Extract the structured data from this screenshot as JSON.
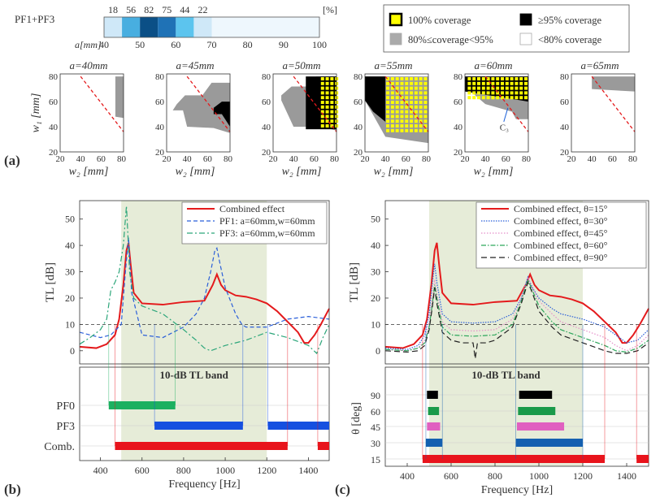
{
  "labels": {
    "a": "(a)",
    "b": "(b)",
    "c": "(c)"
  },
  "strip": {
    "title": "PF1+PF3",
    "unit": "[%]",
    "axis_label": "a[mm]",
    "a_values": [
      40,
      50,
      60,
      70,
      80,
      90,
      100
    ],
    "percents": [
      18,
      56,
      82,
      75,
      44,
      22
    ],
    "cell_colors": [
      "#cfe8f8",
      "#48aee0",
      "#0b4f86",
      "#1f72b6",
      "#5cc4ee",
      "#cfe8f8"
    ],
    "rest_color": "#eef7fd"
  },
  "coverage_legend": [
    {
      "label": "100% coverage",
      "fill": "#ffff00",
      "edge": "#000000",
      "style": "yellow"
    },
    {
      "label": "≥95% coverage",
      "fill": "#000000",
      "edge": "#000000",
      "style": "black"
    },
    {
      "label": "80%≤coverage<95%",
      "fill": "#aaaaaa",
      "edge": "#aaaaaa",
      "style": "gray"
    },
    {
      "label": "<80% coverage",
      "fill": "#ffffff",
      "edge": "#aaaaaa",
      "style": "white"
    }
  ],
  "maps": {
    "ylabel": "w₁ [mm]",
    "xlabel": "w₂ [mm]",
    "ticks": [
      20,
      40,
      60,
      80
    ],
    "annotation": "C₃",
    "panels": [
      {
        "title": "a=40mm",
        "ylabel": true,
        "xlabel": true,
        "gray": [
          [
            74,
            35
          ],
          [
            74,
            48
          ],
          [
            82,
            47
          ],
          [
            82,
            88
          ],
          [
            82,
            80
          ],
          [
            74,
            80
          ]
        ],
        "black": [],
        "yellow": null
      },
      {
        "title": "a=45mm",
        "xlabel": true,
        "gray": [
          [
            26,
            53
          ],
          [
            36,
            53
          ],
          [
            40,
            40
          ],
          [
            66,
            39
          ],
          [
            82,
            35
          ],
          [
            82,
            90
          ],
          [
            82,
            75
          ],
          [
            64,
            75
          ],
          [
            55,
            65
          ],
          [
            38,
            65
          ],
          [
            30,
            58
          ]
        ],
        "black": [
          [
            66,
            50
          ],
          [
            74,
            50
          ],
          [
            82,
            40
          ],
          [
            82,
            60
          ],
          [
            74,
            60
          ],
          [
            66,
            55
          ]
        ],
        "yellow": null
      },
      {
        "title": "a=50mm",
        "xlabel": true,
        "gray": [
          [
            28,
            61
          ],
          [
            40,
            40
          ],
          [
            66,
            40
          ],
          [
            82,
            37
          ],
          [
            82,
            80
          ],
          [
            62,
            80
          ],
          [
            52,
            72
          ],
          [
            38,
            72
          ],
          [
            28,
            65
          ]
        ],
        "black": [
          [
            52,
            38
          ],
          [
            82,
            38
          ],
          [
            82,
            80
          ],
          [
            52,
            80
          ]
        ],
        "yellow": [
          66,
          82,
          40,
          80
        ]
      },
      {
        "title": "a=55mm",
        "xlabel": true,
        "gray": [
          [
            20,
            61
          ],
          [
            40,
            32
          ],
          [
            82,
            27
          ],
          [
            82,
            80
          ],
          [
            20,
            80
          ]
        ],
        "black": [
          [
            20,
            61
          ],
          [
            28,
            52
          ],
          [
            40,
            44
          ],
          [
            40,
            80
          ],
          [
            20,
            80
          ]
        ],
        "yellow": [
          40,
          82,
          38,
          80
        ]
      },
      {
        "title": "a=60mm",
        "xlabel": true,
        "gray": [
          [
            20,
            72
          ],
          [
            40,
            58
          ],
          [
            66,
            52
          ],
          [
            70,
            46
          ],
          [
            82,
            46
          ],
          [
            82,
            80
          ],
          [
            20,
            80
          ]
        ],
        "black": [
          [
            20,
            68
          ],
          [
            82,
            60
          ],
          [
            82,
            80
          ],
          [
            20,
            80
          ]
        ],
        "yellow": [
          22,
          82,
          62,
          80
        ],
        "annotate": true
      },
      {
        "title": "a=65mm",
        "xlabel": false,
        "gray": [
          [
            40,
            70
          ],
          [
            82,
            68
          ],
          [
            82,
            80
          ],
          [
            40,
            80
          ]
        ],
        "black": [],
        "yellow": null
      }
    ]
  },
  "panel_b": {
    "ylabel": "TL [dB]",
    "xlabel": "Frequency [Hz]",
    "band_title": "10-dB TL band",
    "yticks": [
      0,
      10,
      20,
      30,
      40,
      50
    ],
    "xticks": [
      400,
      600,
      800,
      1000,
      1200,
      1400
    ],
    "shade_range": [
      500,
      1200
    ],
    "threshold": 10,
    "legend": [
      {
        "label": "Combined effect",
        "color": "#e41a1c",
        "dash": ""
      },
      {
        "label": "PF1: a=60mm,w=60mm",
        "color": "#2b5fd9",
        "dash": "5,3"
      },
      {
        "label": "PF3: a=60mm,w=60mm",
        "color": "#2ca67a",
        "dash": "7,3,2,3"
      }
    ],
    "bar_rows": [
      "PF0",
      "PF3",
      "Comb."
    ]
  },
  "panel_c": {
    "ylabel": "TL [dB]",
    "xlabel": "Frequency [Hz]",
    "band_title": "10-dB TL band",
    "band_ylabel": "θ [deg]",
    "yticks": [
      0,
      10,
      20,
      30,
      40,
      50
    ],
    "xticks": [
      400,
      600,
      800,
      1000,
      1200,
      1400
    ],
    "theta_ticks": [
      15,
      30,
      45,
      60,
      90
    ],
    "shade_range": [
      500,
      1200
    ],
    "threshold": 10,
    "legend": [
      {
        "label": "Combined effect, θ=15°",
        "color": "#e41a1c",
        "dash": ""
      },
      {
        "label": "Combined effect, θ=30°",
        "color": "#2b5fd9",
        "dash": "1.5,1.5"
      },
      {
        "label": "Combined effect, θ=45°",
        "color": "#e58fc9",
        "dash": "1.5,2"
      },
      {
        "label": "Combined effect, θ=60°",
        "color": "#2ca65a",
        "dash": "6,2,1.5,2"
      },
      {
        "label": "Combined effect, θ=90°",
        "color": "#222222",
        "dash": "7,4"
      }
    ]
  },
  "chart_data": [
    {
      "type": "heatmap",
      "title": "PF1+PF3",
      "xlabel": "a[mm]",
      "categories": [
        "40",
        "45",
        "50",
        "55",
        "60",
        "65"
      ],
      "values": [
        18,
        56,
        82,
        75,
        44,
        22
      ],
      "unit": "[%]",
      "xlim": [
        40,
        100
      ]
    },
    {
      "type": "line",
      "xlabel": "Frequency [Hz]",
      "ylabel": "TL [dB]",
      "xlim": [
        300,
        1500
      ],
      "ylim": [
        -5,
        57
      ],
      "series": [
        {
          "name": "Combined effect",
          "x": [
            300,
            380,
            430,
            470,
            490,
            510,
            525,
            535,
            545,
            560,
            600,
            700,
            800,
            900,
            940,
            960,
            980,
            1000,
            1050,
            1100,
            1150,
            1200,
            1250,
            1300,
            1350,
            1380,
            1400,
            1430,
            1460,
            1500
          ],
          "y": [
            1.5,
            1,
            2.5,
            6,
            12,
            25,
            38,
            41,
            33,
            22,
            18,
            17.5,
            18.5,
            19,
            25,
            29,
            25,
            23,
            21,
            20.5,
            19.5,
            18,
            15,
            11,
            7,
            3,
            3,
            6,
            10,
            16
          ]
        },
        {
          "name": "PF1: a=60mm,w=60mm",
          "x": [
            300,
            400,
            450,
            500,
            520,
            535,
            550,
            600,
            700,
            800,
            860,
            900,
            930,
            950,
            960,
            975,
            1000,
            1050,
            1080,
            1100,
            1200,
            1300,
            1400,
            1500
          ],
          "y": [
            7,
            5,
            6,
            10,
            30,
            43,
            22,
            6,
            5,
            9,
            14,
            20,
            30,
            38,
            39,
            33,
            24,
            14,
            10,
            9,
            9,
            12,
            13,
            12
          ]
        },
        {
          "name": "PF3: a=60mm,w=60mm",
          "x": [
            300,
            350,
            400,
            430,
            450,
            470,
            490,
            510,
            525,
            532,
            540,
            560,
            600,
            700,
            800,
            860,
            900,
            930,
            1000,
            1100,
            1200,
            1300,
            1400,
            1440,
            1470,
            1500
          ],
          "y": [
            2.5,
            5,
            8,
            12,
            23,
            26,
            30,
            40,
            55,
            44,
            30,
            20,
            17,
            14,
            8,
            4,
            1,
            0,
            2,
            4,
            7,
            5,
            2,
            -1,
            5,
            10
          ]
        }
      ],
      "bands": {
        "PF0": [
          [
            440,
            760
          ]
        ],
        "PF3": [
          [
            660,
            1085
          ],
          [
            1205,
            1510
          ]
        ],
        "Comb.": [
          [
            470,
            1300
          ],
          [
            1445,
            1510
          ]
        ]
      }
    },
    {
      "type": "line",
      "xlabel": "Frequency [Hz]",
      "ylabel": "TL [dB]",
      "xlim": [
        300,
        1500
      ],
      "ylim": [
        -5,
        57
      ],
      "series": [
        {
          "name": "Combined effect, θ=15°",
          "x": [
            300,
            380,
            430,
            470,
            490,
            510,
            525,
            535,
            545,
            560,
            600,
            700,
            800,
            900,
            940,
            960,
            980,
            1000,
            1050,
            1100,
            1150,
            1200,
            1250,
            1300,
            1350,
            1380,
            1400,
            1430,
            1460,
            1500
          ],
          "y": [
            1.5,
            1,
            2.5,
            6,
            12,
            25,
            38,
            41,
            33,
            22,
            18,
            17.5,
            18.5,
            19,
            25,
            29,
            25,
            23,
            21,
            20.5,
            19.5,
            18,
            15,
            11,
            7,
            3,
            3,
            6,
            10,
            16
          ]
        },
        {
          "name": "Combined effect, θ=30°",
          "x": [
            300,
            400,
            450,
            480,
            500,
            515,
            525,
            535,
            560,
            600,
            700,
            800,
            880,
            920,
            950,
            970,
            1000,
            1060,
            1100,
            1200,
            1300,
            1350,
            1400,
            1450,
            1500
          ],
          "y": [
            1,
            0.5,
            2,
            6,
            14,
            26,
            33,
            26,
            14,
            11,
            10.5,
            11,
            14,
            20,
            28,
            24,
            20,
            16,
            14,
            12,
            9,
            6,
            3,
            4,
            8
          ]
        },
        {
          "name": "Combined effect, θ=45°",
          "x": [
            300,
            400,
            450,
            480,
            500,
            515,
            525,
            535,
            560,
            600,
            700,
            800,
            880,
            920,
            950,
            970,
            1000,
            1060,
            1100,
            1200,
            1300,
            1350,
            1400,
            1450,
            1500
          ],
          "y": [
            0.5,
            0,
            1,
            4,
            11,
            20,
            27,
            22,
            11,
            8,
            7.5,
            8,
            12,
            20,
            28,
            24,
            19,
            14,
            11,
            8,
            5,
            2,
            0,
            2,
            6
          ]
        },
        {
          "name": "Combined effect, θ=60°",
          "x": [
            300,
            400,
            450,
            480,
            500,
            515,
            525,
            535,
            560,
            600,
            700,
            800,
            880,
            920,
            950,
            970,
            1000,
            1060,
            1100,
            1200,
            1300,
            1350,
            1400,
            1450,
            1500
          ],
          "y": [
            0.5,
            0,
            1,
            3,
            9,
            18,
            25,
            20,
            9,
            6,
            5.5,
            6,
            10,
            19,
            27,
            23,
            17,
            11,
            8,
            5,
            2,
            0,
            -0.5,
            1,
            4
          ]
        },
        {
          "name": "Combined effect, θ=90°",
          "x": [
            300,
            400,
            450,
            480,
            500,
            515,
            525,
            535,
            560,
            600,
            650,
            700,
            710,
            720,
            760,
            800,
            880,
            920,
            950,
            970,
            1000,
            1060,
            1100,
            1200,
            1300,
            1350,
            1400,
            1450,
            1500
          ],
          "y": [
            0,
            -0.5,
            0,
            2,
            8,
            17,
            24,
            18,
            7,
            4,
            3,
            3,
            -3,
            3,
            3,
            4,
            9,
            18,
            26,
            22,
            15,
            9,
            6,
            3,
            0,
            -1,
            -1,
            0,
            3
          ]
        }
      ],
      "bands": {
        "90": [
          [
            490,
            540
          ],
          [
            910,
            1060
          ]
        ],
        "60": [
          [
            495,
            545
          ],
          [
            905,
            1075
          ]
        ],
        "45": [
          [
            490,
            550
          ],
          [
            900,
            1115
          ]
        ],
        "30": [
          [
            485,
            560
          ],
          [
            895,
            1200
          ]
        ],
        "15": [
          [
            470,
            1300
          ],
          [
            1445,
            1510
          ]
        ]
      }
    }
  ]
}
